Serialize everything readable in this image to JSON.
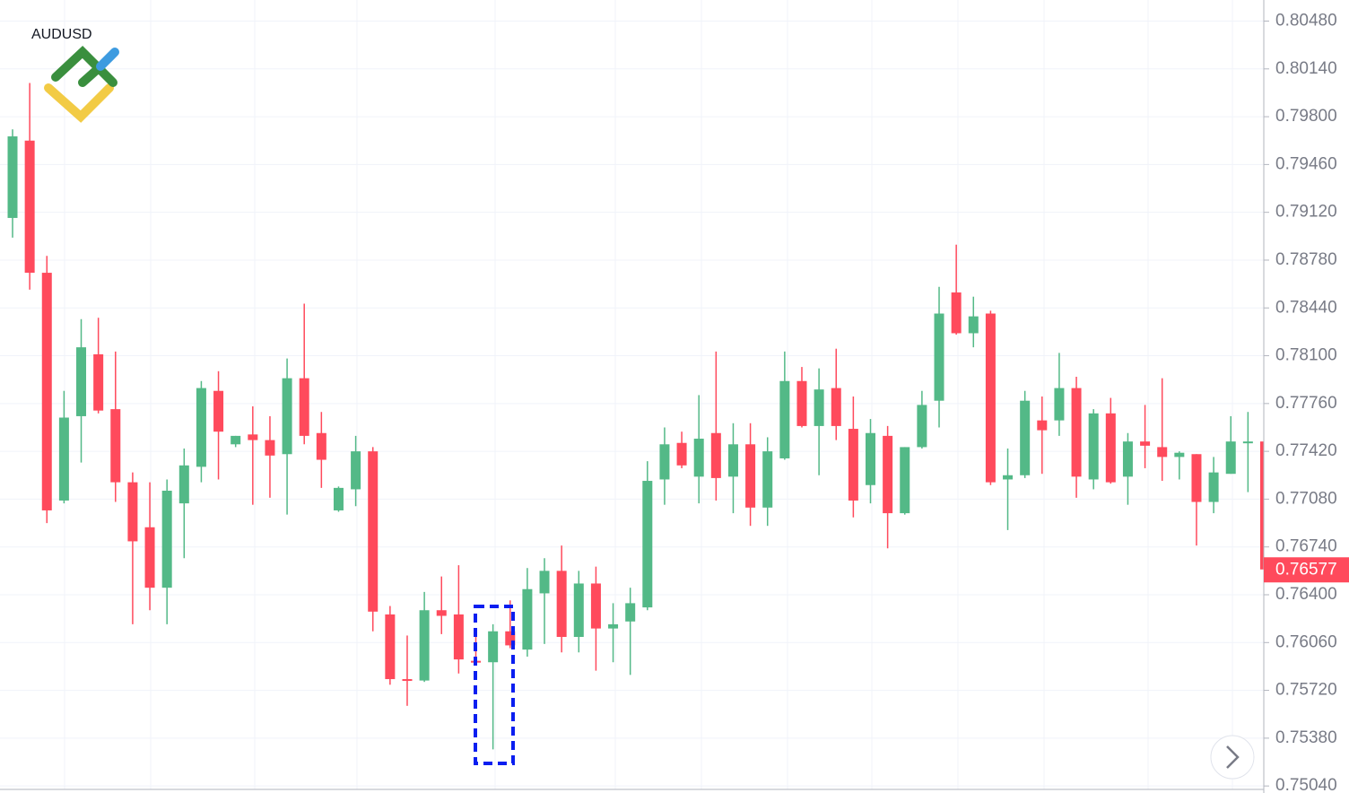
{
  "chart_data": {
    "type": "candlestick",
    "title": "AUDUSD",
    "open": [
      0.7908,
      0.7963,
      0.7869,
      0.7707,
      0.7767,
      0.7811,
      0.7772,
      0.772,
      0.7688,
      0.7645,
      0.7705,
      0.7731,
      0.7785,
      0.7747,
      0.7754,
      0.775,
      0.774,
      0.7794,
      0.7755,
      0.77,
      0.7715,
      0.7742,
      0.7626,
      0.758,
      0.7579,
      0.7629,
      0.7626,
      0.7593,
      0.7592,
      0.7614,
      0.7601,
      0.7641,
      0.7657,
      0.761,
      0.7648,
      0.7616,
      0.7621,
      0.7631,
      0.7722,
      0.7748,
      0.7724,
      0.7755,
      0.7724,
      0.7747,
      0.7702,
      0.7737,
      0.7792,
      0.776,
      0.7787,
      0.7758,
      0.7718,
      0.7753,
      0.7698,
      0.7745,
      0.7778,
      0.7855,
      0.7826,
      0.784,
      0.7722,
      0.7725,
      0.7764,
      0.7764,
      0.7787,
      0.7722,
      0.7769,
      0.7724,
      0.7749,
      0.7745,
      0.7738,
      0.774,
      0.7706,
      0.7726,
      0.7748,
      0.7749
    ],
    "high": [
      0.7971,
      0.8004,
      0.7881,
      0.7785,
      0.7836,
      0.7837,
      0.7813,
      0.7727,
      0.772,
      0.7722,
      0.7744,
      0.7792,
      0.7799,
      0.7753,
      0.7774,
      0.7767,
      0.7808,
      0.7847,
      0.777,
      0.7717,
      0.7753,
      0.7745,
      0.7632,
      0.7611,
      0.7642,
      0.7653,
      0.7661,
      0.7614,
      0.7619,
      0.7636,
      0.7659,
      0.7666,
      0.7675,
      0.7657,
      0.766,
      0.7634,
      0.7645,
      0.7735,
      0.7759,
      0.7756,
      0.7782,
      0.7813,
      0.7762,
      0.7762,
      0.7752,
      0.7813,
      0.7802,
      0.7801,
      0.7815,
      0.7781,
      0.7765,
      0.776,
      0.7745,
      0.7785,
      0.7859,
      0.7889,
      0.7852,
      0.7842,
      0.7744,
      0.7785,
      0.7781,
      0.7812,
      0.7795,
      0.7772,
      0.778,
      0.7755,
      0.7775,
      0.7794,
      0.7742,
      0.774,
      0.7738,
      0.7767,
      0.777,
      0.775
    ],
    "low": [
      0.7894,
      0.7857,
      0.7691,
      0.7705,
      0.7734,
      0.7769,
      0.7706,
      0.7619,
      0.7629,
      0.7619,
      0.7666,
      0.772,
      0.7722,
      0.7745,
      0.7704,
      0.7709,
      0.7697,
      0.7747,
      0.7716,
      0.7699,
      0.7703,
      0.7614,
      0.7576,
      0.7561,
      0.7578,
      0.7612,
      0.7584,
      0.7591,
      0.753,
      0.7602,
      0.7596,
      0.7605,
      0.7599,
      0.7599,
      0.7586,
      0.7592,
      0.7583,
      0.7629,
      0.7704,
      0.773,
      0.7705,
      0.7707,
      0.7698,
      0.7689,
      0.7689,
      0.7736,
      0.7759,
      0.7725,
      0.775,
      0.7695,
      0.7705,
      0.7673,
      0.7697,
      0.7744,
      0.7759,
      0.7825,
      0.7816,
      0.7718,
      0.7686,
      0.7723,
      0.7726,
      0.7753,
      0.7709,
      0.7715,
      0.7719,
      0.7704,
      0.773,
      0.7721,
      0.7722,
      0.7675,
      0.7698,
      0.7726,
      0.7713,
      0.7654
    ],
    "close": [
      0.7966,
      0.7869,
      0.77,
      0.7766,
      0.7816,
      0.7771,
      0.772,
      0.7678,
      0.7645,
      0.7714,
      0.7732,
      0.7787,
      0.7756,
      0.7753,
      0.775,
      0.7739,
      0.7794,
      0.7753,
      0.7736,
      0.7716,
      0.7742,
      0.7628,
      0.758,
      0.7579,
      0.7629,
      0.7625,
      0.7594,
      0.7592,
      0.7614,
      0.7604,
      0.7644,
      0.7657,
      0.761,
      0.7648,
      0.7616,
      0.7619,
      0.7634,
      0.7721,
      0.7747,
      0.7732,
      0.7751,
      0.7723,
      0.7747,
      0.7702,
      0.7742,
      0.7792,
      0.776,
      0.7786,
      0.776,
      0.7707,
      0.7755,
      0.7698,
      0.7745,
      0.7775,
      0.784,
      0.7826,
      0.7838,
      0.772,
      0.7725,
      0.7778,
      0.7757,
      0.7787,
      0.7724,
      0.7769,
      0.772,
      0.7749,
      0.7746,
      0.7738,
      0.7741,
      0.7706,
      0.7727,
      0.7749,
      0.7749,
      0.7658
    ],
    "up_color": "#53b987",
    "down_color": "#ff4a5c",
    "last_price": 0.76577,
    "ylim": [
      0.7499,
      0.8063
    ],
    "yticks": [
      {
        "value": 0.8048,
        "label": "0.80480"
      },
      {
        "value": 0.8014,
        "label": "0.80140"
      },
      {
        "value": 0.798,
        "label": "0.79800"
      },
      {
        "value": 0.7946,
        "label": "0.79460"
      },
      {
        "value": 0.7912,
        "label": "0.79120"
      },
      {
        "value": 0.7878,
        "label": "0.78780"
      },
      {
        "value": 0.7844,
        "label": "0.78440"
      },
      {
        "value": 0.781,
        "label": "0.78100"
      },
      {
        "value": 0.7776,
        "label": "0.77760"
      },
      {
        "value": 0.7742,
        "label": "0.77420"
      },
      {
        "value": 0.7708,
        "label": "0.77080"
      },
      {
        "value": 0.7674,
        "label": "0.76740"
      },
      {
        "value": 0.764,
        "label": "0.76400"
      },
      {
        "value": 0.7606,
        "label": "0.76060"
      },
      {
        "value": 0.7572,
        "label": "0.75720"
      },
      {
        "value": 0.7538,
        "label": "0.75380"
      },
      {
        "value": 0.7504,
        "label": "0.75040"
      }
    ],
    "grid": true
  }
}
